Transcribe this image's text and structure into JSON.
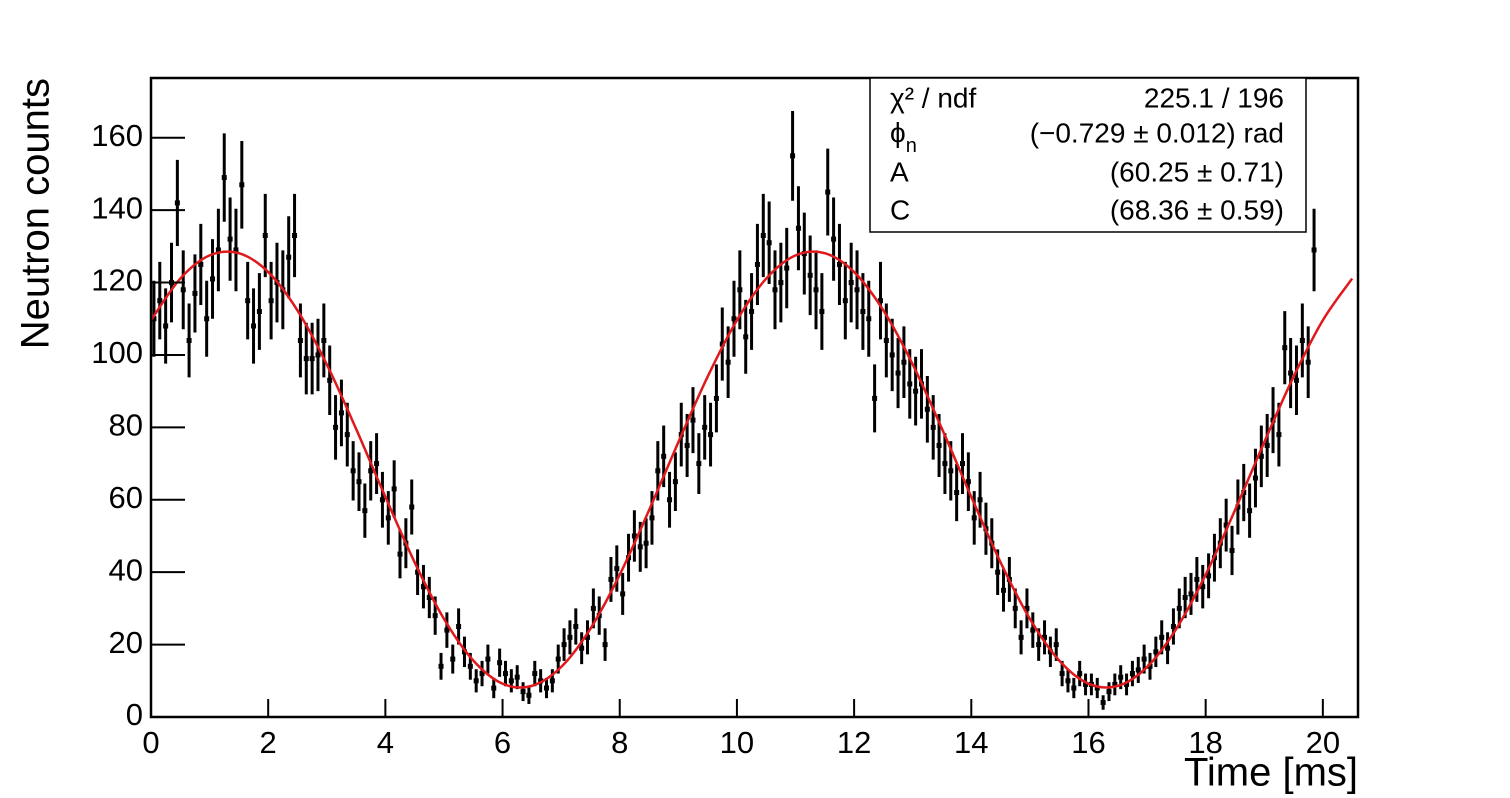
{
  "chart_data": {
    "type": "scatter",
    "xlabel": "Time [ms]",
    "ylabel": "Neutron counts",
    "xlim": [
      0,
      20.6
    ],
    "ylim": [
      0,
      176.5
    ],
    "xticks": [
      0,
      2,
      4,
      6,
      8,
      10,
      12,
      14,
      16,
      18,
      20
    ],
    "yticks": [
      0,
      20,
      40,
      60,
      80,
      100,
      120,
      140,
      160
    ],
    "stats": [
      {
        "label": "χ² / ndf",
        "value": "225.1 / 196"
      },
      {
        "label": {
          "symbol": "ϕ",
          "sub": "n"
        },
        "value": "(−0.729 ± 0.012) rad"
      },
      {
        "label": "A",
        "value": "(60.25 ± 0.71)"
      },
      {
        "label": "C",
        "value": "(68.36 ± 0.59)"
      }
    ],
    "series": [
      {
        "kind": "points",
        "color": "#000000",
        "x": [
          0.05,
          0.15,
          0.25,
          0.35,
          0.45,
          0.55,
          0.65,
          0.75,
          0.85,
          0.95,
          1.05,
          1.15,
          1.25,
          1.35,
          1.45,
          1.55,
          1.65,
          1.75,
          1.85,
          1.95,
          2.05,
          2.15,
          2.25,
          2.35,
          2.45,
          2.55,
          2.65,
          2.75,
          2.85,
          2.95,
          3.05,
          3.15,
          3.25,
          3.35,
          3.45,
          3.55,
          3.65,
          3.75,
          3.85,
          3.95,
          4.05,
          4.15,
          4.25,
          4.35,
          4.45,
          4.55,
          4.65,
          4.75,
          4.85,
          4.95,
          5.05,
          5.15,
          5.25,
          5.35,
          5.45,
          5.55,
          5.65,
          5.75,
          5.85,
          5.95,
          6.05,
          6.15,
          6.25,
          6.35,
          6.45,
          6.55,
          6.65,
          6.75,
          6.85,
          6.95,
          7.05,
          7.15,
          7.25,
          7.35,
          7.45,
          7.55,
          7.65,
          7.75,
          7.85,
          7.95,
          8.05,
          8.15,
          8.25,
          8.35,
          8.45,
          8.55,
          8.65,
          8.75,
          8.85,
          8.95,
          9.05,
          9.15,
          9.25,
          9.35,
          9.45,
          9.55,
          9.65,
          9.75,
          9.85,
          9.95,
          10.05,
          10.15,
          10.25,
          10.35,
          10.45,
          10.55,
          10.65,
          10.75,
          10.85,
          10.95,
          11.05,
          11.15,
          11.25,
          11.35,
          11.45,
          11.55,
          11.65,
          11.75,
          11.85,
          11.95,
          12.05,
          12.15,
          12.25,
          12.35,
          12.45,
          12.55,
          12.65,
          12.75,
          12.85,
          12.95,
          13.05,
          13.15,
          13.25,
          13.35,
          13.45,
          13.55,
          13.65,
          13.75,
          13.85,
          13.95,
          14.05,
          14.15,
          14.25,
          14.35,
          14.45,
          14.55,
          14.65,
          14.75,
          14.85,
          14.95,
          15.05,
          15.15,
          15.25,
          15.35,
          15.45,
          15.55,
          15.65,
          15.75,
          15.85,
          15.95,
          16.05,
          16.15,
          16.25,
          16.35,
          16.45,
          16.55,
          16.65,
          16.75,
          16.85,
          16.95,
          17.05,
          17.15,
          17.25,
          17.35,
          17.45,
          17.55,
          17.65,
          17.75,
          17.85,
          17.95,
          18.05,
          18.15,
          18.25,
          18.35,
          18.45,
          18.55,
          18.65,
          18.75,
          18.85,
          18.95,
          19.05,
          19.15,
          19.25,
          19.35,
          19.45,
          19.55,
          19.65,
          19.75,
          19.85
        ],
        "values": [
          110,
          115,
          108,
          120,
          142,
          118,
          104,
          117,
          125,
          110,
          121,
          129,
          149,
          132,
          129,
          147,
          115,
          108,
          112,
          133,
          115,
          120,
          118,
          127,
          133,
          104,
          99,
          99,
          100,
          104,
          93,
          80,
          84,
          78,
          68,
          65,
          57,
          68,
          70,
          60,
          55,
          63,
          45,
          48,
          58,
          40,
          36,
          33,
          28,
          14,
          24,
          16,
          25,
          18,
          14,
          10,
          12,
          16,
          8,
          15,
          12,
          10,
          11,
          7,
          6,
          12,
          10,
          8,
          10,
          16,
          20,
          22,
          25,
          19,
          22,
          30,
          28,
          20,
          38,
          41,
          34,
          44,
          50,
          47,
          48,
          55,
          68,
          72,
          60,
          65,
          78,
          75,
          82,
          70,
          80,
          78,
          88,
          103,
          98,
          110,
          118,
          105,
          112,
          125,
          133,
          131,
          118,
          120,
          124,
          155,
          135,
          128,
          122,
          118,
          112,
          145,
          132,
          125,
          115,
          120,
          118,
          112,
          110,
          88,
          115,
          104,
          100,
          95,
          98,
          92,
          90,
          92,
          85,
          80,
          75,
          70,
          68,
          62,
          70,
          65,
          55,
          60,
          52,
          48,
          40,
          35,
          38,
          30,
          22,
          30,
          24,
          20,
          22,
          18,
          20,
          12,
          10,
          8,
          12,
          9,
          9,
          8,
          4,
          7,
          9,
          11,
          9,
          12,
          13,
          16,
          14,
          18,
          22,
          19,
          25,
          30,
          33,
          34,
          38,
          36,
          39,
          44,
          48,
          53,
          46,
          58,
          62,
          57,
          66,
          72,
          75,
          82,
          78,
          102,
          95,
          93,
          104,
          98,
          129
        ],
        "errors": [
          10.5,
          10.7,
          10.4,
          11,
          11.9,
          10.9,
          10.2,
          10.8,
          11.2,
          10.5,
          11,
          11.4,
          12.2,
          11.5,
          11.4,
          12.1,
          10.7,
          10.4,
          10.6,
          11.5,
          10.7,
          11,
          10.9,
          11.3,
          11.5,
          10.2,
          9.9,
          9.9,
          10,
          10.2,
          9.6,
          8.9,
          9.2,
          8.8,
          8.2,
          8.1,
          7.5,
          8.2,
          8.4,
          7.7,
          7.4,
          7.9,
          6.7,
          6.9,
          7.6,
          6.3,
          6,
          5.7,
          5.3,
          3.7,
          4.9,
          4,
          5,
          4.2,
          3.7,
          3.2,
          3.5,
          4,
          2.8,
          3.9,
          3.5,
          3.2,
          3.3,
          2.6,
          2.4,
          3.5,
          3.2,
          2.8,
          3.2,
          4,
          4.5,
          4.7,
          5,
          4.4,
          4.7,
          5.5,
          5.3,
          4.5,
          6.2,
          6.4,
          5.8,
          6.6,
          7.1,
          6.9,
          6.9,
          7.4,
          8.2,
          8.5,
          7.7,
          8.1,
          8.8,
          8.7,
          9.1,
          8.4,
          8.9,
          8.8,
          9.4,
          10.1,
          9.9,
          10.5,
          10.9,
          10.2,
          10.6,
          11.2,
          11.5,
          11.4,
          10.9,
          11,
          11.1,
          12.4,
          11.6,
          11.3,
          11,
          10.9,
          10.6,
          12,
          11.5,
          11.2,
          10.7,
          11,
          10.9,
          10.6,
          10.5,
          9.4,
          10.7,
          10.2,
          10,
          9.7,
          9.9,
          9.6,
          9.5,
          9.6,
          9.2,
          8.9,
          8.7,
          8.4,
          8.2,
          7.9,
          8.4,
          8.1,
          7.4,
          7.7,
          7.2,
          6.9,
          6.3,
          5.9,
          6.2,
          5.5,
          4.7,
          5.5,
          4.9,
          4.5,
          4.7,
          4.2,
          4.5,
          3.5,
          3.2,
          2.8,
          3.5,
          3,
          3,
          2.8,
          2,
          2.6,
          3,
          3.3,
          3,
          3.5,
          3.6,
          4,
          3.7,
          4.2,
          4.7,
          4.4,
          5,
          5.5,
          5.7,
          5.8,
          6.2,
          6,
          6.2,
          6.6,
          6.9,
          7.3,
          6.8,
          7.6,
          7.9,
          7.5,
          8.1,
          8.5,
          8.7,
          9.1,
          8.8,
          10.1,
          9.7,
          9.6,
          10.2,
          9.9,
          11.4
        ]
      },
      {
        "kind": "line",
        "color": "#e0191c",
        "x": [
          0,
          0.5,
          1,
          1.5,
          2,
          2.5,
          3,
          3.5,
          4,
          4.5,
          5,
          5.5,
          6,
          6.5,
          7,
          7.5,
          8,
          8.5,
          9,
          9.5,
          10,
          10.5,
          11,
          11.5,
          12,
          12.5,
          13,
          13.5,
          14,
          14.5,
          15,
          15.5,
          16,
          16.5,
          17,
          17.5,
          18,
          18.5,
          19,
          19.5,
          20,
          20.5
        ],
        "values": [
          109.6,
          121.1,
          127.5,
          128.1,
          122.9,
          112.3,
          97.4,
          79.6,
          60.8,
          42.7,
          27.1,
          15.6,
          9.2,
          8.6,
          13.8,
          24.4,
          39.3,
          57.1,
          75.9,
          94,
          109.6,
          121.1,
          127.5,
          128.1,
          122.9,
          112.3,
          97.4,
          79.6,
          60.8,
          42.7,
          27.1,
          15.6,
          9.2,
          8.6,
          13.8,
          24.4,
          39.3,
          57.1,
          75.9,
          94,
          109.6,
          121.1
        ]
      }
    ]
  }
}
